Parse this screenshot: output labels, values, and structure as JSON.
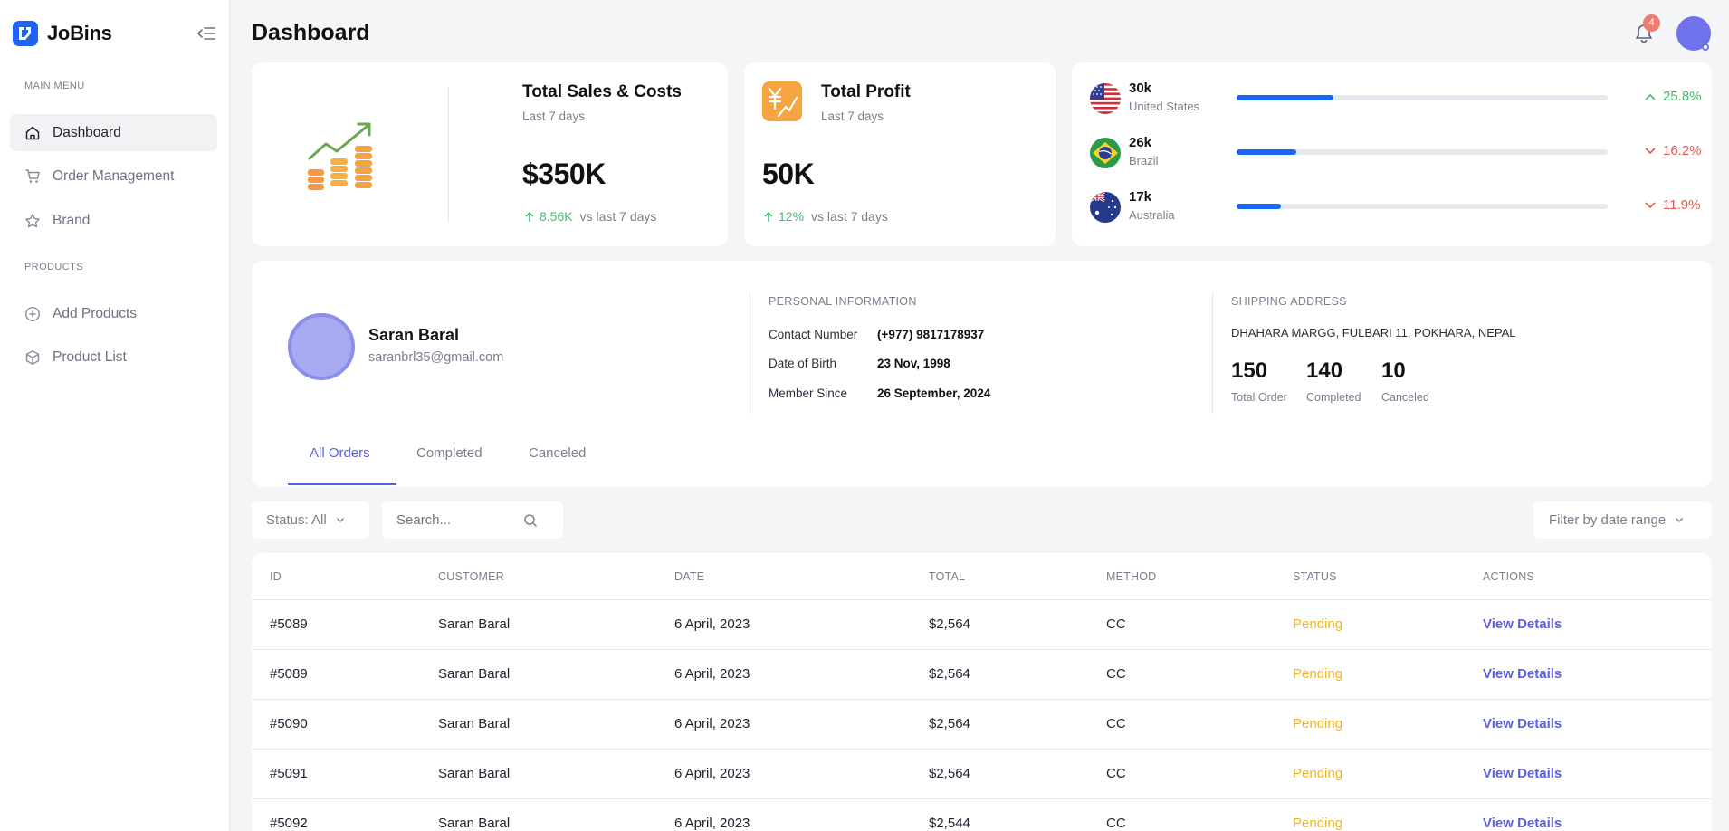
{
  "app": {
    "name": "JoBins"
  },
  "sidebar": {
    "main_menu_label": "MAIN MENU",
    "products_label": "PRODUCTS",
    "items": [
      {
        "label": "Dashboard",
        "icon": "home-icon"
      },
      {
        "label": "Order Management",
        "icon": "cart-icon"
      },
      {
        "label": "Brand",
        "icon": "star-icon"
      },
      {
        "label": "Add Products",
        "icon": "plus-circle-icon"
      },
      {
        "label": "Product List",
        "icon": "box-icon"
      }
    ]
  },
  "header": {
    "title": "Dashboard",
    "notification_count": "4"
  },
  "sales_card": {
    "title": "Total Sales & Costs",
    "subtitle": "Last 7 days",
    "value": "$350K",
    "delta": "8.56K",
    "delta_label": "vs last 7 days"
  },
  "profit_card": {
    "title": "Total Profit",
    "subtitle": "Last 7 days",
    "value": "50K",
    "delta": "12%",
    "delta_label": "vs last 7 days"
  },
  "countries": [
    {
      "value": "30k",
      "name": "United States",
      "progress": 0.26,
      "change": "25.8%",
      "trend": "up"
    },
    {
      "value": "26k",
      "name": "Brazil",
      "progress": 0.16,
      "change": "16.2%",
      "trend": "down"
    },
    {
      "value": "17k",
      "name": "Australia",
      "progress": 0.12,
      "change": "11.9%",
      "trend": "down"
    }
  ],
  "profile": {
    "name": "Saran Baral",
    "email": "saranbrl35@gmail.com",
    "personal_heading": "PERSONAL INFORMATION",
    "contact_label": "Contact Number",
    "contact_value": "(+977) 9817178937",
    "dob_label": "Date of Birth",
    "dob_value": "23 Nov, 1998",
    "member_label": "Member Since",
    "member_value": "26 September, 2024",
    "shipping_heading": "SHIPPING ADDRESS",
    "address": "DHAHARA MARGG, FULBARI 11, POKHARA, NEPAL",
    "stats": [
      {
        "value": "150",
        "label": "Total Order"
      },
      {
        "value": "140",
        "label": "Completed"
      },
      {
        "value": "10",
        "label": "Canceled"
      }
    ],
    "tabs": [
      "All Orders",
      "Completed",
      "Canceled"
    ]
  },
  "filters": {
    "status_label": "Status: All",
    "search_placeholder": "Search...",
    "date_label": "Filter by date range"
  },
  "table": {
    "headers": [
      "ID",
      "CUSTOMER",
      "DATE",
      "TOTAL",
      "METHOD",
      "STATUS",
      "ACTIONS"
    ],
    "rows": [
      [
        "#5089",
        "Saran Baral",
        "6 April, 2023",
        "$2,564",
        "CC",
        "Pending",
        "View Details"
      ],
      [
        "#5089",
        "Saran Baral",
        "6 April, 2023",
        "$2,564",
        "CC",
        "Pending",
        "View Details"
      ],
      [
        "#5090",
        "Saran Baral",
        "6 April, 2023",
        "$2,564",
        "CC",
        "Pending",
        "View Details"
      ],
      [
        "#5091",
        "Saran Baral",
        "6 April, 2023",
        "$2,564",
        "CC",
        "Pending",
        "View Details"
      ],
      [
        "#5092",
        "Saran Baral",
        "6 April, 2023",
        "$2,544",
        "CC",
        "Pending",
        "View Details"
      ]
    ]
  },
  "colors": {
    "accent": "#5b5fe0",
    "brand": "#1e63f5",
    "progress": "#1668f0",
    "pending": "#f2b41d",
    "positive": "#3fbf6b",
    "negative": "#e2564f"
  }
}
